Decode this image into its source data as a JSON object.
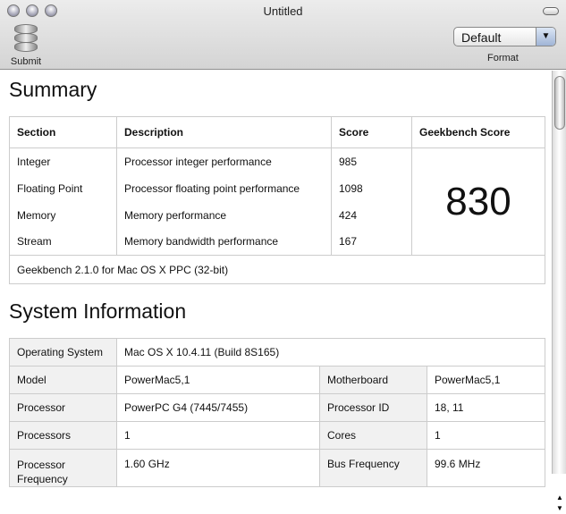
{
  "window": {
    "title": "Untitled"
  },
  "toolbar": {
    "submit_label": "Submit",
    "format_label": "Format",
    "format_value": "Default"
  },
  "summary": {
    "heading": "Summary",
    "headers": [
      "Section",
      "Description",
      "Score",
      "Geekbench Score"
    ],
    "rows": [
      {
        "section": "Integer",
        "description": "Processor integer performance",
        "score": "985"
      },
      {
        "section": "Floating Point",
        "description": "Processor floating point performance",
        "score": "1098"
      },
      {
        "section": "Memory",
        "description": "Memory performance",
        "score": "424"
      },
      {
        "section": "Stream",
        "description": "Memory bandwidth performance",
        "score": "167"
      }
    ],
    "geekbench_score": "830",
    "footer": "Geekbench 2.1.0 for Mac OS X PPC (32-bit)"
  },
  "system": {
    "heading": "System Information",
    "os_label": "Operating System",
    "os_value": "Mac OS X 10.4.11 (Build 8S165)",
    "rows": [
      {
        "l1": "Model",
        "v1": "PowerMac5,1",
        "l2": "Motherboard",
        "v2": "PowerMac5,1"
      },
      {
        "l1": "Processor",
        "v1": "PowerPC G4 (7445/7455)",
        "l2": "Processor ID",
        "v2": "18, 11"
      },
      {
        "l1": "Processors",
        "v1": "1",
        "l2": "Cores",
        "v2": "1"
      },
      {
        "l1": "Processor Frequency",
        "v1": "1.60 GHz",
        "l2": "Bus Frequency",
        "v2": "99.6 MHz"
      }
    ]
  }
}
